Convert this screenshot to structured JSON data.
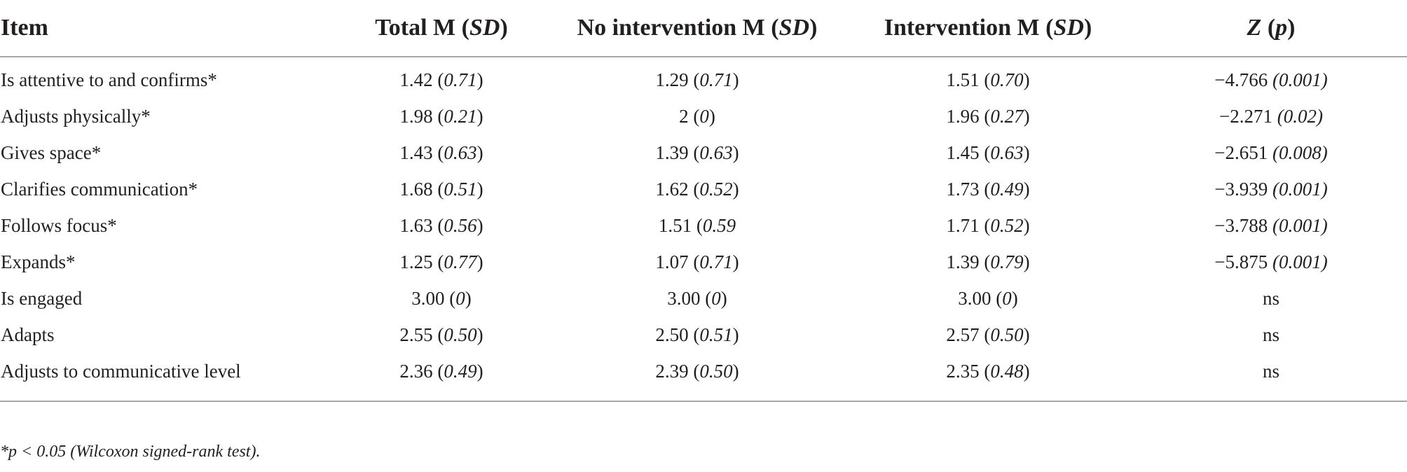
{
  "table": {
    "headers": [
      {
        "label": "Item",
        "stat": "",
        "pre": "",
        "post": ""
      },
      {
        "label": "Total M",
        "pre": " (",
        "stat": "SD",
        "post": ")"
      },
      {
        "label": "No intervention M",
        "pre": " (",
        "stat": "SD",
        "post": ")"
      },
      {
        "label": "Intervention M",
        "pre": " (",
        "stat": "SD",
        "post": ")"
      },
      {
        "label": "",
        "pre": "",
        "stat": "Z",
        "post": " (",
        "stat2": "p",
        "post2": ")"
      }
    ],
    "rows": [
      {
        "item": "Is attentive to and confirms*",
        "total_m": "1.42",
        "total_sd": "0.71",
        "noint_m": "1.29",
        "noint_sd": "0.71",
        "int_m": "1.51",
        "int_sd": "0.70",
        "z": "−4.766",
        "p": "0.001"
      },
      {
        "item": "Adjusts physically*",
        "total_m": "1.98",
        "total_sd": "0.21",
        "noint_m": "2",
        "noint_sd": "0",
        "int_m": "1.96",
        "int_sd": "0.27",
        "z": "−2.271",
        "p": "0.02"
      },
      {
        "item": "Gives space*",
        "total_m": "1.43",
        "total_sd": "0.63",
        "noint_m": "1.39",
        "noint_sd": "0.63",
        "int_m": "1.45",
        "int_sd": "0.63",
        "z": "−2.651",
        "p": "0.008"
      },
      {
        "item": "Clarifies communication*",
        "total_m": "1.68",
        "total_sd": "0.51",
        "noint_m": "1.62",
        "noint_sd": "0.52",
        "int_m": "1.73",
        "int_sd": "0.49",
        "z": "−3.939",
        "p": "0.001"
      },
      {
        "item": "Follows focus*",
        "total_m": "1.63",
        "total_sd": "0.56",
        "noint_m": "1.51",
        "noint_sd": "0.59",
        "int_m": "1.71",
        "int_sd": "0.52",
        "z": "−3.788",
        "p": "0.001"
      },
      {
        "item": "Expands*",
        "total_m": "1.25",
        "total_sd": "0.77",
        "noint_m": "1.07",
        "noint_sd": "0.71",
        "int_m": "1.39",
        "int_sd": "0.79",
        "z": "−5.875",
        "p": "0.001"
      },
      {
        "item": "Is engaged",
        "total_m": "3.00",
        "total_sd": "0",
        "noint_m": "3.00",
        "noint_sd": "0",
        "int_m": "3.00",
        "int_sd": "0",
        "z": "ns",
        "p": ""
      },
      {
        "item": "Adapts",
        "total_m": "2.55",
        "total_sd": "0.50",
        "noint_m": "2.50",
        "noint_sd": "0.51",
        "int_m": "2.57",
        "int_sd": "0.50",
        "z": "ns",
        "p": ""
      },
      {
        "item": "Adjusts to communicative level",
        "total_m": "2.36",
        "total_sd": "0.49",
        "noint_m": "2.39",
        "noint_sd": "0.50",
        "int_m": "2.35",
        "int_sd": "0.48",
        "z": "ns",
        "p": ""
      }
    ]
  },
  "footnote": "*p < 0.05 (Wilcoxon signed-rank test)."
}
